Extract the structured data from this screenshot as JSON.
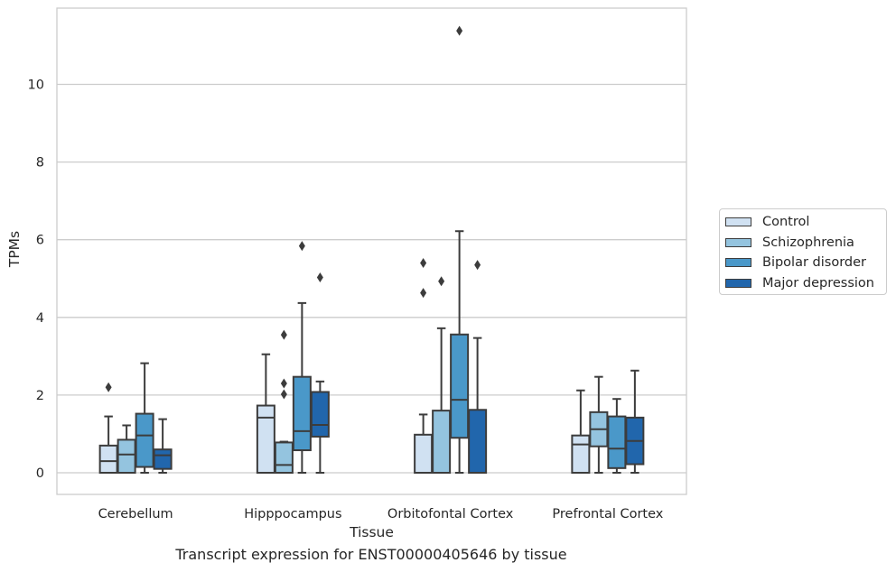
{
  "chart_data": {
    "type": "box",
    "xlabel": "Tissue",
    "ylabel": "TPMs",
    "caption": "Transcript expression for ENST00000405646 by tissue",
    "ylim": [
      -0.55,
      12.05
    ],
    "yticks": [
      0,
      2,
      4,
      6,
      8,
      10
    ],
    "grid": "horizontal",
    "legend_position": "right",
    "categories": [
      "Cerebellum",
      "Hipppocampus",
      "Orbitofontal Cortex",
      "Prefrontal Cortex"
    ],
    "series": [
      {
        "name": "Control",
        "color": "#d0e1f2",
        "boxes": [
          {
            "min": 0,
            "q1": 0,
            "median": 0.3,
            "q3": 0.7,
            "max": 1.45,
            "outliers": [
              2.2
            ]
          },
          {
            "min": 0,
            "q1": 0,
            "median": 1.42,
            "q3": 1.73,
            "max": 3.05,
            "outliers": []
          },
          {
            "min": 0,
            "q1": 0,
            "median": 0,
            "q3": 0.98,
            "max": 1.5,
            "outliers": [
              4.63,
              5.4
            ]
          },
          {
            "min": 0,
            "q1": 0,
            "median": 0.73,
            "q3": 0.96,
            "max": 2.12,
            "outliers": []
          }
        ]
      },
      {
        "name": "Schizophrenia",
        "color": "#94c4df",
        "boxes": [
          {
            "min": 0,
            "q1": 0,
            "median": 0.47,
            "q3": 0.85,
            "max": 1.22,
            "outliers": []
          },
          {
            "min": 0,
            "q1": 0,
            "median": 0.2,
            "q3": 0.78,
            "max": 0.8,
            "outliers": [
              2.02,
              2.3,
              3.55
            ]
          },
          {
            "min": 0,
            "q1": 0,
            "median": 0,
            "q3": 1.6,
            "max": 3.72,
            "outliers": [
              4.93
            ]
          },
          {
            "min": 0,
            "q1": 0.68,
            "median": 1.12,
            "q3": 1.56,
            "max": 2.47,
            "outliers": []
          }
        ]
      },
      {
        "name": "Bipolar disorder",
        "color": "#4a98c9",
        "boxes": [
          {
            "min": 0,
            "q1": 0.15,
            "median": 0.96,
            "q3": 1.52,
            "max": 2.82,
            "outliers": []
          },
          {
            "min": 0,
            "q1": 0.58,
            "median": 1.07,
            "q3": 2.47,
            "max": 4.37,
            "outliers": [
              5.84
            ]
          },
          {
            "min": 0,
            "q1": 0.9,
            "median": 1.88,
            "q3": 3.56,
            "max": 6.22,
            "outliers": [
              11.38
            ]
          },
          {
            "min": 0,
            "q1": 0.12,
            "median": 0.62,
            "q3": 1.45,
            "max": 1.9,
            "outliers": []
          }
        ]
      },
      {
        "name": "Major depression",
        "color": "#2166ac",
        "boxes": [
          {
            "min": 0,
            "q1": 0.1,
            "median": 0.45,
            "q3": 0.6,
            "max": 1.38,
            "outliers": []
          },
          {
            "min": 0,
            "q1": 0.93,
            "median": 1.23,
            "q3": 2.08,
            "max": 2.35,
            "outliers": [
              5.03
            ]
          },
          {
            "min": 0,
            "q1": 0,
            "median": 0,
            "q3": 1.62,
            "max": 3.47,
            "outliers": [
              5.35
            ]
          },
          {
            "min": 0,
            "q1": 0.22,
            "median": 0.82,
            "q3": 1.42,
            "max": 2.63,
            "outliers": []
          }
        ]
      }
    ]
  }
}
